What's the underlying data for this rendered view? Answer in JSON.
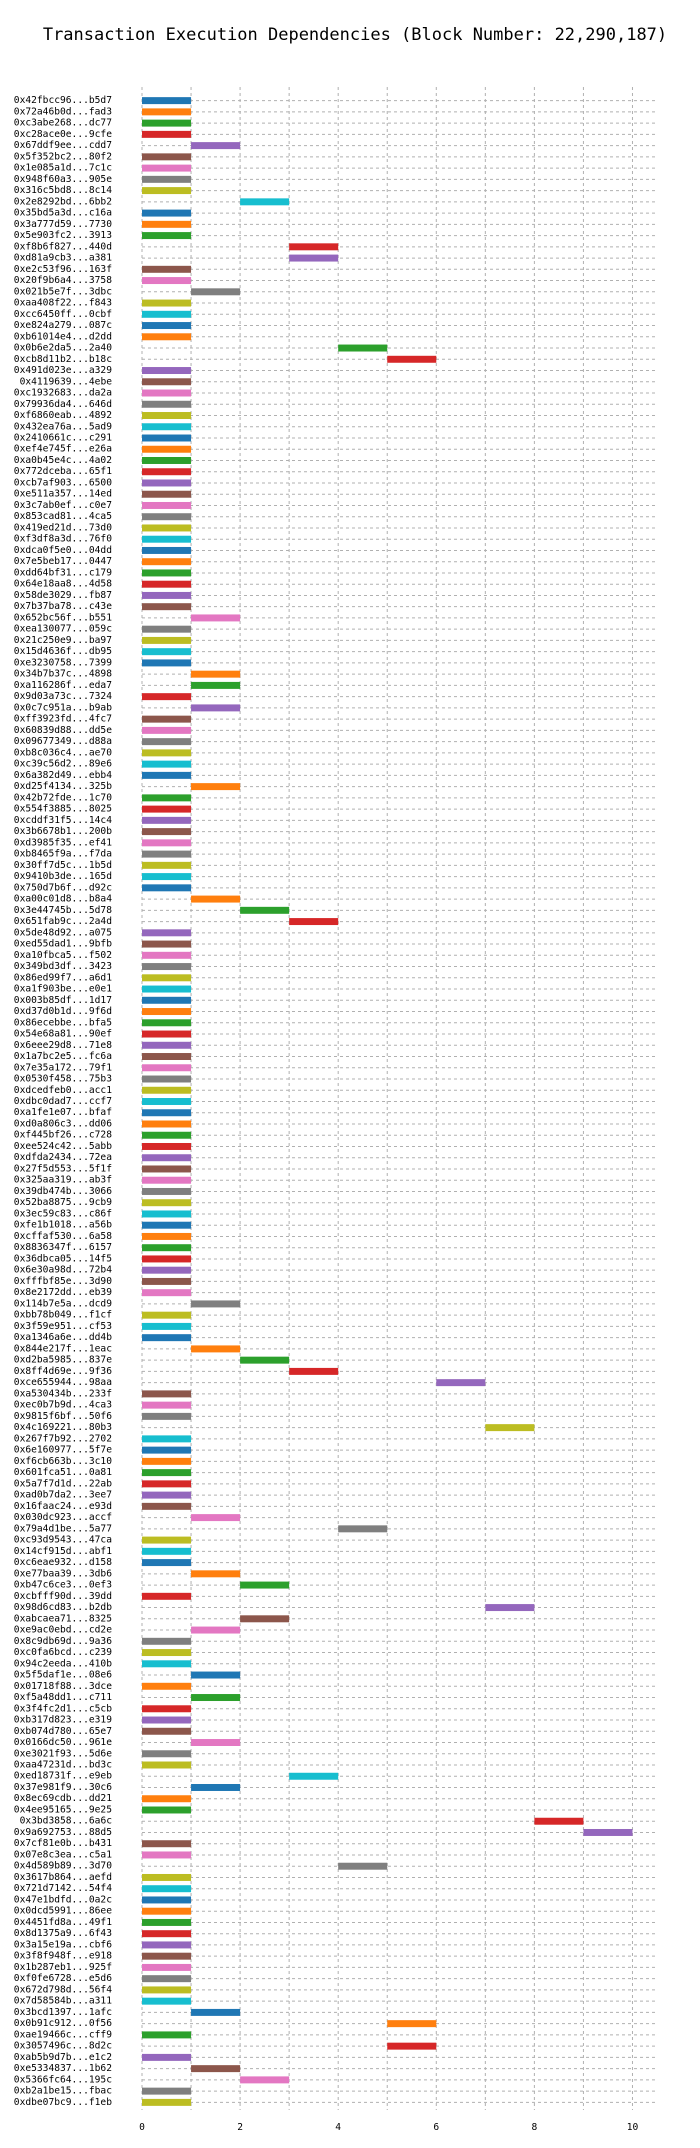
{
  "chart_data": {
    "type": "bar",
    "orientation": "horizontal",
    "title": "Transaction Execution Dependencies (Block Number: 22,290,187)",
    "xlabel": "",
    "ylabel": "",
    "xlim": [
      0,
      10.5
    ],
    "xticks": [
      0,
      2,
      4,
      6,
      8,
      10
    ],
    "grid": true,
    "palette": [
      "#1f77b4",
      "#ff7f0e",
      "#2ca02c",
      "#d62728",
      "#9467bd",
      "#8c564b",
      "#e377c2",
      "#7f7f7f",
      "#bcbd22",
      "#17becf"
    ],
    "transactions": [
      {
        "label": "0x42fbcc96...b5d7",
        "start": 0,
        "end": 1
      },
      {
        "label": "0x72a46b0d...fad3",
        "start": 0,
        "end": 1
      },
      {
        "label": "0xc3abe268...dc77",
        "start": 0,
        "end": 1
      },
      {
        "label": "0xc28ace0e...9cfe",
        "start": 0,
        "end": 1
      },
      {
        "label": "0x67ddf9ee...cdd7",
        "start": 1,
        "end": 2
      },
      {
        "label": "0x5f352bc2...80f2",
        "start": 0,
        "end": 1
      },
      {
        "label": "0x1e085a1d...7c1c",
        "start": 0,
        "end": 1
      },
      {
        "label": "0x948f60a3...905e",
        "start": 0,
        "end": 1
      },
      {
        "label": "0x316c5bd8...8c14",
        "start": 0,
        "end": 1
      },
      {
        "label": "0x2e8292bd...6bb2",
        "start": 2,
        "end": 3
      },
      {
        "label": "0x35bd5a3d...c16a",
        "start": 0,
        "end": 1
      },
      {
        "label": "0x3a777d59...7730",
        "start": 0,
        "end": 1
      },
      {
        "label": "0x5e903fc2...3913",
        "start": 0,
        "end": 1
      },
      {
        "label": "0xf8b6f827...440d",
        "start": 3,
        "end": 4
      },
      {
        "label": "0xd81a9cb3...a381",
        "start": 3,
        "end": 4
      },
      {
        "label": "0xe2c53f96...163f",
        "start": 0,
        "end": 1
      },
      {
        "label": "0x20f9b6a4...3758",
        "start": 0,
        "end": 1
      },
      {
        "label": "0x021b5e7f...3dbc",
        "start": 1,
        "end": 2
      },
      {
        "label": "0xaa408f22...f843",
        "start": 0,
        "end": 1
      },
      {
        "label": "0xcc6450ff...0cbf",
        "start": 0,
        "end": 1
      },
      {
        "label": "0xe824a279...087c",
        "start": 0,
        "end": 1
      },
      {
        "label": "0xb61014e4...d2dd",
        "start": 0,
        "end": 1
      },
      {
        "label": "0x0b6e2da5...2a40",
        "start": 4,
        "end": 5
      },
      {
        "label": "0xcb8d11b2...b18c",
        "start": 5,
        "end": 6
      },
      {
        "label": "0x491d023e...a329",
        "start": 0,
        "end": 1
      },
      {
        "label": "0x4119639...4ebe",
        "start": 0,
        "end": 1
      },
      {
        "label": "0xc1932683...da2a",
        "start": 0,
        "end": 1
      },
      {
        "label": "0x79936da4...646d",
        "start": 0,
        "end": 1
      },
      {
        "label": "0xf6860eab...4892",
        "start": 0,
        "end": 1
      },
      {
        "label": "0x432ea76a...5ad9",
        "start": 0,
        "end": 1
      },
      {
        "label": "0x2410661c...c291",
        "start": 0,
        "end": 1
      },
      {
        "label": "0xef4e745f...e26a",
        "start": 0,
        "end": 1
      },
      {
        "label": "0xa0b45e4c...4a02",
        "start": 0,
        "end": 1
      },
      {
        "label": "0x772dceba...65f1",
        "start": 0,
        "end": 1
      },
      {
        "label": "0xcb7af903...6500",
        "start": 0,
        "end": 1
      },
      {
        "label": "0xe511a357...14ed",
        "start": 0,
        "end": 1
      },
      {
        "label": "0x3c7ab0ef...c0e7",
        "start": 0,
        "end": 1
      },
      {
        "label": "0x853cad81...4ca5",
        "start": 0,
        "end": 1
      },
      {
        "label": "0x419ed21d...73d0",
        "start": 0,
        "end": 1
      },
      {
        "label": "0xf3df8a3d...76f0",
        "start": 0,
        "end": 1
      },
      {
        "label": "0xdca0f5e0...04dd",
        "start": 0,
        "end": 1
      },
      {
        "label": "0x7e5beb17...0447",
        "start": 0,
        "end": 1
      },
      {
        "label": "0xdd64bf31...c179",
        "start": 0,
        "end": 1
      },
      {
        "label": "0x64e18aa8...4d58",
        "start": 0,
        "end": 1
      },
      {
        "label": "0x58de3029...fb87",
        "start": 0,
        "end": 1
      },
      {
        "label": "0x7b37ba78...c43e",
        "start": 0,
        "end": 1
      },
      {
        "label": "0x652bc56f...b551",
        "start": 1,
        "end": 2
      },
      {
        "label": "0xea130077...059c",
        "start": 0,
        "end": 1
      },
      {
        "label": "0x21c250e9...ba97",
        "start": 0,
        "end": 1
      },
      {
        "label": "0x15d4636f...db95",
        "start": 0,
        "end": 1
      },
      {
        "label": "0xe3230758...7399",
        "start": 0,
        "end": 1
      },
      {
        "label": "0x34b7b37c...4898",
        "start": 1,
        "end": 2
      },
      {
        "label": "0xa116286f...eda7",
        "start": 1,
        "end": 2
      },
      {
        "label": "0x9d03a73c...7324",
        "start": 0,
        "end": 1
      },
      {
        "label": "0x0c7c951a...b9ab",
        "start": 1,
        "end": 2
      },
      {
        "label": "0xff3923fd...4fc7",
        "start": 0,
        "end": 1
      },
      {
        "label": "0x60839d88...dd5e",
        "start": 0,
        "end": 1
      },
      {
        "label": "0x09677349...d88a",
        "start": 0,
        "end": 1
      },
      {
        "label": "0xb8c036c4...ae70",
        "start": 0,
        "end": 1
      },
      {
        "label": "0xc39c56d2...89e6",
        "start": 0,
        "end": 1
      },
      {
        "label": "0x6a382d49...ebb4",
        "start": 0,
        "end": 1
      },
      {
        "label": "0xd25f4134...325b",
        "start": 1,
        "end": 2
      },
      {
        "label": "0x42b72fde...1c70",
        "start": 0,
        "end": 1
      },
      {
        "label": "0x554f3885...8025",
        "start": 0,
        "end": 1
      },
      {
        "label": "0xcddf31f5...14c4",
        "start": 0,
        "end": 1
      },
      {
        "label": "0x3b6678b1...200b",
        "start": 0,
        "end": 1
      },
      {
        "label": "0xd3985f35...ef41",
        "start": 0,
        "end": 1
      },
      {
        "label": "0xb8465f9a...f7da",
        "start": 0,
        "end": 1
      },
      {
        "label": "0x30ff7d5c...1b5d",
        "start": 0,
        "end": 1
      },
      {
        "label": "0x9410b3de...165d",
        "start": 0,
        "end": 1
      },
      {
        "label": "0x750d7b6f...d92c",
        "start": 0,
        "end": 1
      },
      {
        "label": "0xa00c01d8...b8a4",
        "start": 1,
        "end": 2
      },
      {
        "label": "0x3e44745b...5d78",
        "start": 2,
        "end": 3
      },
      {
        "label": "0x651fab9c...2a4d",
        "start": 3,
        "end": 4
      },
      {
        "label": "0x5de48d92...a075",
        "start": 0,
        "end": 1
      },
      {
        "label": "0xed55dad1...9bfb",
        "start": 0,
        "end": 1
      },
      {
        "label": "0xa10fbca5...f502",
        "start": 0,
        "end": 1
      },
      {
        "label": "0x349bd3df...3423",
        "start": 0,
        "end": 1
      },
      {
        "label": "0x86ed99f7...a6d1",
        "start": 0,
        "end": 1
      },
      {
        "label": "0xa1f903be...e0e1",
        "start": 0,
        "end": 1
      },
      {
        "label": "0x003b85df...1d17",
        "start": 0,
        "end": 1
      },
      {
        "label": "0xd37d0b1d...9f6d",
        "start": 0,
        "end": 1
      },
      {
        "label": "0x86ecebbe...bfa5",
        "start": 0,
        "end": 1
      },
      {
        "label": "0x54e68a81...90ef",
        "start": 0,
        "end": 1
      },
      {
        "label": "0x6eee29d8...71e8",
        "start": 0,
        "end": 1
      },
      {
        "label": "0x1a7bc2e5...fc6a",
        "start": 0,
        "end": 1
      },
      {
        "label": "0x7e35a172...79f1",
        "start": 0,
        "end": 1
      },
      {
        "label": "0x0530f458...75b3",
        "start": 0,
        "end": 1
      },
      {
        "label": "0xdcedfeb0...acc1",
        "start": 0,
        "end": 1
      },
      {
        "label": "0xdbc0dad7...ccf7",
        "start": 0,
        "end": 1
      },
      {
        "label": "0xa1fe1e07...bfaf",
        "start": 0,
        "end": 1
      },
      {
        "label": "0xd0a806c3...dd06",
        "start": 0,
        "end": 1
      },
      {
        "label": "0xf445bf26...c728",
        "start": 0,
        "end": 1
      },
      {
        "label": "0xee524c42...5abb",
        "start": 0,
        "end": 1
      },
      {
        "label": "0xdfda2434...72ea",
        "start": 0,
        "end": 1
      },
      {
        "label": "0x27f5d553...5f1f",
        "start": 0,
        "end": 1
      },
      {
        "label": "0x325aa319...ab3f",
        "start": 0,
        "end": 1
      },
      {
        "label": "0x39db474b...3066",
        "start": 0,
        "end": 1
      },
      {
        "label": "0x52ba8875...9cb9",
        "start": 0,
        "end": 1
      },
      {
        "label": "0x3ec59c83...c86f",
        "start": 0,
        "end": 1
      },
      {
        "label": "0xfe1b1018...a56b",
        "start": 0,
        "end": 1
      },
      {
        "label": "0xcffaf530...6a58",
        "start": 0,
        "end": 1
      },
      {
        "label": "0x8836347f...6157",
        "start": 0,
        "end": 1
      },
      {
        "label": "0x36dbca05...14f5",
        "start": 0,
        "end": 1
      },
      {
        "label": "0x6e30a98d...72b4",
        "start": 0,
        "end": 1
      },
      {
        "label": "0xfffbf85e...3d90",
        "start": 0,
        "end": 1
      },
      {
        "label": "0x8e2172dd...eb39",
        "start": 0,
        "end": 1
      },
      {
        "label": "0x114b7e5a...dcd9",
        "start": 1,
        "end": 2
      },
      {
        "label": "0xbb78b049...f1cf",
        "start": 0,
        "end": 1
      },
      {
        "label": "0x3f59e951...cf53",
        "start": 0,
        "end": 1
      },
      {
        "label": "0xa1346a6e...dd4b",
        "start": 0,
        "end": 1
      },
      {
        "label": "0x844e217f...1eac",
        "start": 1,
        "end": 2
      },
      {
        "label": "0xd2ba5985...837e",
        "start": 2,
        "end": 3
      },
      {
        "label": "0x8ff4d69e...9f36",
        "start": 3,
        "end": 4
      },
      {
        "label": "0xce655944...98aa",
        "start": 6,
        "end": 7
      },
      {
        "label": "0xa530434b...233f",
        "start": 0,
        "end": 1
      },
      {
        "label": "0xec0b7b9d...4ca3",
        "start": 0,
        "end": 1
      },
      {
        "label": "0x9815f6bf...50f6",
        "start": 0,
        "end": 1
      },
      {
        "label": "0x4c169221...80b3",
        "start": 7,
        "end": 8
      },
      {
        "label": "0x267f7b92...2702",
        "start": 0,
        "end": 1
      },
      {
        "label": "0x6e160977...5f7e",
        "start": 0,
        "end": 1
      },
      {
        "label": "0xf6cb663b...3c10",
        "start": 0,
        "end": 1
      },
      {
        "label": "0x601fca51...0a81",
        "start": 0,
        "end": 1
      },
      {
        "label": "0x5a7f7d1d...22ab",
        "start": 0,
        "end": 1
      },
      {
        "label": "0xad0b7da2...3ee7",
        "start": 0,
        "end": 1
      },
      {
        "label": "0x16faac24...e93d",
        "start": 0,
        "end": 1
      },
      {
        "label": "0x030dc923...accf",
        "start": 1,
        "end": 2
      },
      {
        "label": "0x79a4d1be...5a77",
        "start": 4,
        "end": 5
      },
      {
        "label": "0xc93d9543...47ca",
        "start": 0,
        "end": 1
      },
      {
        "label": "0x14cf915d...abf1",
        "start": 0,
        "end": 1
      },
      {
        "label": "0xc6eae932...d158",
        "start": 0,
        "end": 1
      },
      {
        "label": "0xe77baa39...3db6",
        "start": 1,
        "end": 2
      },
      {
        "label": "0xb47c6ce3...0ef3",
        "start": 2,
        "end": 3
      },
      {
        "label": "0xcbfff90d...39dd",
        "start": 0,
        "end": 1
      },
      {
        "label": "0x98d6cd83...b2db",
        "start": 7,
        "end": 8
      },
      {
        "label": "0xabcaea71...8325",
        "start": 2,
        "end": 3
      },
      {
        "label": "0xe9ac0ebd...cd2e",
        "start": 1,
        "end": 2
      },
      {
        "label": "0x8c9db69d...9a36",
        "start": 0,
        "end": 1
      },
      {
        "label": "0xc0fa6bcd...c239",
        "start": 0,
        "end": 1
      },
      {
        "label": "0x94c2eeda...410b",
        "start": 0,
        "end": 1
      },
      {
        "label": "0x5f5daf1e...08e6",
        "start": 1,
        "end": 2
      },
      {
        "label": "0x01718f88...3dce",
        "start": 0,
        "end": 1
      },
      {
        "label": "0xf5a48dd1...c711",
        "start": 1,
        "end": 2
      },
      {
        "label": "0x3f4fc2d1...c5cb",
        "start": 0,
        "end": 1
      },
      {
        "label": "0xb317d823...e319",
        "start": 0,
        "end": 1
      },
      {
        "label": "0xb074d780...65e7",
        "start": 0,
        "end": 1
      },
      {
        "label": "0x0166dc50...961e",
        "start": 1,
        "end": 2
      },
      {
        "label": "0xe3021f93...5d6e",
        "start": 0,
        "end": 1
      },
      {
        "label": "0xaa47231d...bd3c",
        "start": 0,
        "end": 1
      },
      {
        "label": "0xed18731f...e9eb",
        "start": 3,
        "end": 4
      },
      {
        "label": "0x37e981f9...30c6",
        "start": 1,
        "end": 2
      },
      {
        "label": "0x8ec69cdb...dd21",
        "start": 0,
        "end": 1
      },
      {
        "label": "0x4ee95165...9e25",
        "start": 0,
        "end": 1
      },
      {
        "label": "0x3bd3858...6a6c",
        "start": 8,
        "end": 9
      },
      {
        "label": "0x9a692753...88d5",
        "start": 9,
        "end": 10
      },
      {
        "label": "0x7cf81e0b...b431",
        "start": 0,
        "end": 1
      },
      {
        "label": "0x07e8c3ea...c5a1",
        "start": 0,
        "end": 1
      },
      {
        "label": "0x4d589b89...3d70",
        "start": 4,
        "end": 5
      },
      {
        "label": "0x3617b864...aefd",
        "start": 0,
        "end": 1
      },
      {
        "label": "0x721d7142...54f4",
        "start": 0,
        "end": 1
      },
      {
        "label": "0x47e1bdfd...0a2c",
        "start": 0,
        "end": 1
      },
      {
        "label": "0x0dcd5991...86ee",
        "start": 0,
        "end": 1
      },
      {
        "label": "0x4451fd8a...49f1",
        "start": 0,
        "end": 1
      },
      {
        "label": "0x8d1375a9...6f43",
        "start": 0,
        "end": 1
      },
      {
        "label": "0x3a15e19a...cbf6",
        "start": 0,
        "end": 1
      },
      {
        "label": "0x3f8f948f...e918",
        "start": 0,
        "end": 1
      },
      {
        "label": "0x1b287eb1...925f",
        "start": 0,
        "end": 1
      },
      {
        "label": "0xf0fe6728...e5d6",
        "start": 0,
        "end": 1
      },
      {
        "label": "0x672d798d...56f4",
        "start": 0,
        "end": 1
      },
      {
        "label": "0x7d58584b...a311",
        "start": 0,
        "end": 1
      },
      {
        "label": "0x3bcd1397...1afc",
        "start": 1,
        "end": 2
      },
      {
        "label": "0x0b91c912...0f56",
        "start": 5,
        "end": 6
      },
      {
        "label": "0xae19466c...cff9",
        "start": 0,
        "end": 1
      },
      {
        "label": "0x3057496c...8d2c",
        "start": 5,
        "end": 6
      },
      {
        "label": "0xab5b9d7b...e1c2",
        "start": 0,
        "end": 1
      },
      {
        "label": "0xe5334837...1b62",
        "start": 1,
        "end": 2
      },
      {
        "label": "0x5366fc64...195c",
        "start": 2,
        "end": 3
      },
      {
        "label": "0xb2a1be15...fbac",
        "start": 0,
        "end": 1
      },
      {
        "label": "0xdbe07bc9...f1eb",
        "start": 0,
        "end": 1
      }
    ]
  }
}
